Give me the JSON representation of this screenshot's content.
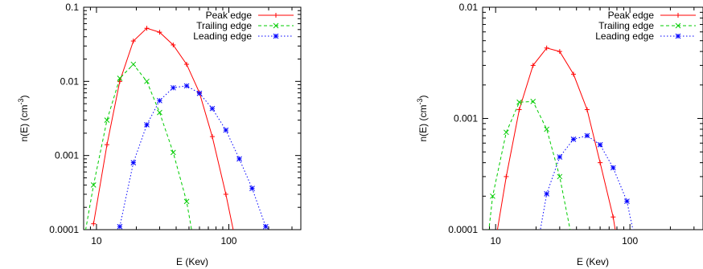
{
  "chart_data": [
    {
      "type": "line",
      "xlabel": "E (Kev)",
      "ylabel": "n(E) (cm^-3)",
      "ylabel_base": "n(E) (cm",
      "ylabel_sup": "-3",
      "ylabel_close": ")",
      "xscale": "log",
      "yscale": "log",
      "xlim": [
        8,
        350
      ],
      "ylim": [
        0.0001,
        0.1
      ],
      "xticks": [
        10,
        100
      ],
      "xtick_labels": [
        "10",
        "100"
      ],
      "yticks": [
        0.0001,
        0.001,
        0.01,
        0.1
      ],
      "ytick_labels": [
        "0.0001",
        "0.001",
        "0.01",
        "0.1"
      ],
      "legend_position": "top-right",
      "series": [
        {
          "name": "Peak edge",
          "color": "#ff0000",
          "dash": "solid",
          "marker": "plus",
          "x": [
            9.5,
            12,
            15,
            19,
            24,
            30,
            38,
            48,
            60,
            75,
            95,
            120
          ],
          "y": [
            0.00012,
            0.0014,
            0.01,
            0.035,
            0.052,
            0.046,
            0.031,
            0.017,
            0.007,
            0.0018,
            0.0003,
            4e-05
          ]
        },
        {
          "name": "Trailing edge",
          "color": "#00cc00",
          "dash": "dashed",
          "marker": "x",
          "x": [
            8,
            9.5,
            12,
            15,
            19,
            24,
            30,
            38,
            48,
            55
          ],
          "y": [
            7e-05,
            0.0004,
            0.003,
            0.011,
            0.017,
            0.01,
            0.0038,
            0.0011,
            0.00024,
            6e-05
          ]
        },
        {
          "name": "Leading edge",
          "color": "#0000ff",
          "dash": "dotted",
          "marker": "star",
          "x": [
            15,
            19,
            24,
            30,
            38,
            48,
            60,
            75,
            95,
            120,
            150,
            190
          ],
          "y": [
            0.00011,
            0.0008,
            0.0026,
            0.0055,
            0.0082,
            0.0087,
            0.0069,
            0.0043,
            0.0022,
            0.0009,
            0.00036,
            0.00011
          ]
        }
      ]
    },
    {
      "type": "line",
      "xlabel": "E (Kev)",
      "ylabel": "n(E) (cm^-3)",
      "ylabel_base": "n(E) (cm",
      "ylabel_sup": "-3",
      "ylabel_close": ")",
      "xscale": "log",
      "yscale": "log",
      "xlim": [
        8,
        350
      ],
      "ylim": [
        0.0001,
        0.01
      ],
      "xticks": [
        10,
        100
      ],
      "xtick_labels": [
        "10",
        "100"
      ],
      "yticks": [
        0.0001,
        0.001,
        0.01
      ],
      "ytick_labels": [
        "0.0001",
        "0.001",
        "0.01"
      ],
      "legend_position": "top-right",
      "series": [
        {
          "name": "Peak edge",
          "color": "#ff0000",
          "dash": "solid",
          "marker": "plus",
          "x": [
            10,
            12,
            15,
            19,
            24,
            30,
            38,
            48,
            60,
            75,
            80
          ],
          "y": [
            8e-05,
            0.0003,
            0.0012,
            0.003,
            0.0043,
            0.004,
            0.0025,
            0.0012,
            0.0004,
            0.00013,
            8e-05
          ]
        },
        {
          "name": "Trailing edge",
          "color": "#00cc00",
          "dash": "dashed",
          "marker": "x",
          "x": [
            8.5,
            9.5,
            12,
            15,
            19,
            24,
            30,
            38
          ],
          "y": [
            6e-05,
            0.0002,
            0.00075,
            0.0014,
            0.00142,
            0.0008,
            0.0003,
            7e-05
          ]
        },
        {
          "name": "Leading edge",
          "color": "#0000ff",
          "dash": "dotted",
          "marker": "star",
          "x": [
            20,
            24,
            30,
            38,
            48,
            60,
            75,
            95,
            115
          ],
          "y": [
            6e-05,
            0.00021,
            0.00045,
            0.00065,
            0.0007,
            0.00058,
            0.00036,
            0.00018,
            6e-05
          ]
        }
      ]
    }
  ]
}
